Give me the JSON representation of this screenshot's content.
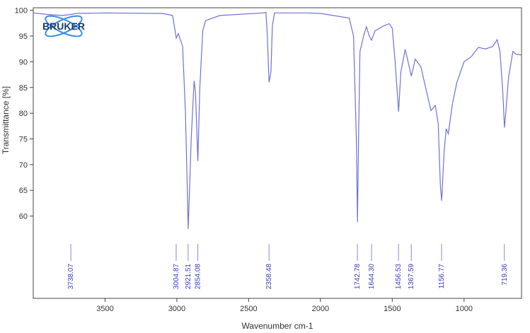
{
  "logo": "BRUKER",
  "chart_data": {
    "type": "line",
    "xlabel": "Wavenumber cm-1",
    "ylabel": "Transmittance [%]",
    "xlim": [
      4000,
      600
    ],
    "ylim": [
      44,
      100.5
    ],
    "xticks": [
      3500,
      3000,
      2500,
      2000,
      1500,
      1000
    ],
    "yticks": [
      60,
      65,
      70,
      75,
      80,
      85,
      90,
      95,
      100
    ],
    "x": [
      4000,
      3900,
      3800,
      3738,
      3700,
      3500,
      3100,
      3030,
      3004,
      2990,
      2960,
      2940,
      2921,
      2900,
      2880,
      2870,
      2854,
      2840,
      2820,
      2800,
      2700,
      2400,
      2380,
      2370,
      2358,
      2345,
      2335,
      2320,
      2100,
      2000,
      1800,
      1770,
      1750,
      1742,
      1735,
      1725,
      1700,
      1680,
      1660,
      1644,
      1620,
      1560,
      1520,
      1500,
      1480,
      1456,
      1440,
      1410,
      1390,
      1367,
      1340,
      1300,
      1260,
      1230,
      1200,
      1180,
      1165,
      1156,
      1140,
      1125,
      1110,
      1080,
      1050,
      1000,
      950,
      900,
      850,
      800,
      770,
      750,
      730,
      719,
      710,
      690,
      660,
      640,
      600
    ],
    "series": [
      {
        "color": "#7070d8",
        "values": [
          99.5,
          99.2,
          99,
          99.2,
          99.4,
          99.5,
          99.4,
          99,
          94.6,
          95.5,
          93,
          80,
          57.5,
          75,
          86.3,
          84,
          70.7,
          85,
          96,
          98,
          99,
          99.5,
          99.6,
          95,
          86,
          88,
          97,
          99.5,
          99.5,
          99.4,
          98.5,
          95,
          75,
          58.8,
          75,
          92,
          95,
          96.8,
          95,
          94.2,
          96,
          97,
          97.4,
          96.5,
          90,
          80.3,
          88,
          92.4,
          90,
          87.2,
          90.5,
          89,
          84,
          80.5,
          81.5,
          78,
          66,
          63,
          72,
          77,
          76,
          82,
          86,
          90,
          91,
          92.8,
          92.5,
          93,
          94.3,
          92,
          84,
          77.2,
          80,
          87,
          92,
          91.5,
          91.3
        ]
      }
    ],
    "peaks": [
      {
        "value": 3738.07,
        "label": "3738.07"
      },
      {
        "value": 3004.87,
        "label": "3004.87"
      },
      {
        "value": 2921.51,
        "label": "2921.51"
      },
      {
        "value": 2854.08,
        "label": "2854.08"
      },
      {
        "value": 2358.48,
        "label": "2358.48"
      },
      {
        "value": 1742.78,
        "label": "1742.78"
      },
      {
        "value": 1644.3,
        "label": "1644.30"
      },
      {
        "value": 1456.53,
        "label": "1456.53"
      },
      {
        "value": 1367.59,
        "label": "1367.59"
      },
      {
        "value": 1156.77,
        "label": "1156.77"
      },
      {
        "value": 719.36,
        "label": "719.36"
      }
    ]
  }
}
